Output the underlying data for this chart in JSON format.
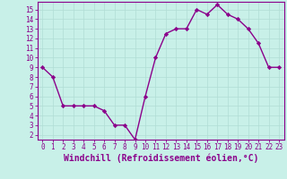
{
  "x": [
    0,
    1,
    2,
    3,
    4,
    5,
    6,
    7,
    8,
    9,
    10,
    11,
    12,
    13,
    14,
    15,
    16,
    17,
    18,
    19,
    20,
    21,
    22,
    23
  ],
  "y": [
    9,
    8,
    5,
    5,
    5,
    5,
    4.5,
    3,
    3,
    1.5,
    6,
    10,
    12.5,
    13,
    13,
    15,
    14.5,
    15.5,
    14.5,
    14,
    13,
    11.5,
    9,
    9
  ],
  "line_color": "#8b008b",
  "marker": "D",
  "marker_size": 2.2,
  "background_color": "#c8f0e8",
  "grid_color": "#b0ddd4",
  "xlabel": "Windchill (Refroidissement éolien,°C)",
  "xlabel_fontsize": 7,
  "xlim": [
    -0.5,
    23.5
  ],
  "ylim": [
    1.5,
    15.8
  ],
  "yticks": [
    2,
    3,
    4,
    5,
    6,
    7,
    8,
    9,
    10,
    11,
    12,
    13,
    14,
    15
  ],
  "xticks": [
    0,
    1,
    2,
    3,
    4,
    5,
    6,
    7,
    8,
    9,
    10,
    11,
    12,
    13,
    14,
    15,
    16,
    17,
    18,
    19,
    20,
    21,
    22,
    23
  ],
  "tick_fontsize": 5.5,
  "line_width": 1.0
}
